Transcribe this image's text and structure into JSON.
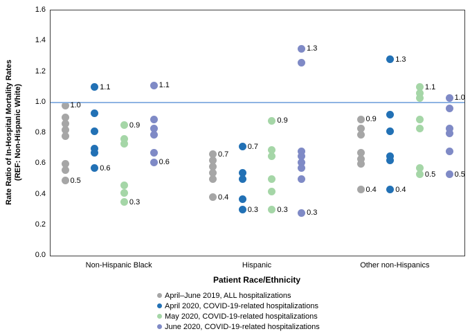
{
  "chart_data": {
    "type": "scatter",
    "title": "",
    "ylabel_line1": "Rate Ratio of In-Hospital  Mortality  Rates",
    "ylabel_line2": "(REF:  Non-Hispanic  White)",
    "xlabel": "Patient Race/Ethnicity",
    "ylim": [
      0.0,
      1.6
    ],
    "ytick_step": 0.2,
    "grid": false,
    "legend_position": "bottom",
    "reference_line": 1.0,
    "reference_line_color": "#8EB4E3",
    "categories": [
      "Non-Hispanic Black",
      "Hispanic",
      "Other non-Hispanics"
    ],
    "series": [
      {
        "name": "April–June 2019, ALL hospitalizations",
        "color": "#A6A6A6",
        "groups": [
          {
            "category": "Non-Hispanic Black",
            "points": [
              {
                "v": 0.98,
                "label": "1.0"
              },
              {
                "v": 0.9
              },
              {
                "v": 0.86
              },
              {
                "v": 0.82
              },
              {
                "v": 0.78
              },
              {
                "v": 0.6
              },
              {
                "v": 0.56
              },
              {
                "v": 0.49,
                "label": "0.5"
              }
            ]
          },
          {
            "category": "Hispanic",
            "points": [
              {
                "v": 0.66,
                "label": "0.7"
              },
              {
                "v": 0.62
              },
              {
                "v": 0.58
              },
              {
                "v": 0.54
              },
              {
                "v": 0.5
              },
              {
                "v": 0.38,
                "label": "0.4"
              }
            ]
          },
          {
            "category": "Other non-Hispanics",
            "points": [
              {
                "v": 0.89,
                "label": "0.9"
              },
              {
                "v": 0.83
              },
              {
                "v": 0.79
              },
              {
                "v": 0.67
              },
              {
                "v": 0.63
              },
              {
                "v": 0.6
              },
              {
                "v": 0.43,
                "label": "0.4"
              }
            ]
          }
        ]
      },
      {
        "name": "April 2020, COVID-19-related hospitalizations",
        "color": "#2271B5",
        "groups": [
          {
            "category": "Non-Hispanic Black",
            "points": [
              {
                "v": 1.1,
                "label": "1.1"
              },
              {
                "v": 0.93
              },
              {
                "v": 0.81
              },
              {
                "v": 0.7
              },
              {
                "v": 0.67
              },
              {
                "v": 0.57,
                "label": "0.6"
              }
            ]
          },
          {
            "category": "Hispanic",
            "points": [
              {
                "v": 0.71,
                "label": "0.7"
              },
              {
                "v": 0.54
              },
              {
                "v": 0.5
              },
              {
                "v": 0.37
              },
              {
                "v": 0.3,
                "label": "0.3"
              }
            ]
          },
          {
            "category": "Other non-Hispanics",
            "points": [
              {
                "v": 1.28,
                "label": "1.3"
              },
              {
                "v": 0.92
              },
              {
                "v": 0.81
              },
              {
                "v": 0.65
              },
              {
                "v": 0.62
              },
              {
                "v": 0.43,
                "label": "0.4"
              }
            ]
          }
        ]
      },
      {
        "name": "May 2020, COVID-19-related hospitalizations",
        "color": "#A5D6A7",
        "groups": [
          {
            "category": "Non-Hispanic Black",
            "points": [
              {
                "v": 0.85,
                "label": "0.9"
              },
              {
                "v": 0.76
              },
              {
                "v": 0.73
              },
              {
                "v": 0.46
              },
              {
                "v": 0.41
              },
              {
                "v": 0.35,
                "label": "0.3"
              }
            ]
          },
          {
            "category": "Hispanic",
            "points": [
              {
                "v": 0.88,
                "label": "0.9"
              },
              {
                "v": 0.69
              },
              {
                "v": 0.65
              },
              {
                "v": 0.5
              },
              {
                "v": 0.42
              },
              {
                "v": 0.3,
                "label": "0.3"
              }
            ]
          },
          {
            "category": "Other non-Hispanics",
            "points": [
              {
                "v": 1.1,
                "label": "1.1"
              },
              {
                "v": 1.06
              },
              {
                "v": 1.03
              },
              {
                "v": 0.89
              },
              {
                "v": 0.83
              },
              {
                "v": 0.57
              },
              {
                "v": 0.53,
                "label": "0.5"
              }
            ]
          }
        ]
      },
      {
        "name": "June 2020, COVID-19-related hospitalizations",
        "color": "#7F8AC6",
        "groups": [
          {
            "category": "Non-Hispanic Black",
            "points": [
              {
                "v": 1.11,
                "label": "1.1"
              },
              {
                "v": 0.89
              },
              {
                "v": 0.83
              },
              {
                "v": 0.79
              },
              {
                "v": 0.67
              },
              {
                "v": 0.61,
                "label": "0.6"
              }
            ]
          },
          {
            "category": "Hispanic",
            "points": [
              {
                "v": 1.35,
                "label": "1.3"
              },
              {
                "v": 1.26
              },
              {
                "v": 0.68
              },
              {
                "v": 0.65
              },
              {
                "v": 0.61
              },
              {
                "v": 0.57
              },
              {
                "v": 0.5
              },
              {
                "v": 0.28,
                "label": "0.3"
              }
            ]
          },
          {
            "category": "Other non-Hispanics",
            "points": [
              {
                "v": 1.03,
                "label": "1.0"
              },
              {
                "v": 0.96
              },
              {
                "v": 0.83
              },
              {
                "v": 0.8
              },
              {
                "v": 0.68
              },
              {
                "v": 0.53,
                "label": "0.5"
              }
            ]
          }
        ]
      }
    ]
  }
}
